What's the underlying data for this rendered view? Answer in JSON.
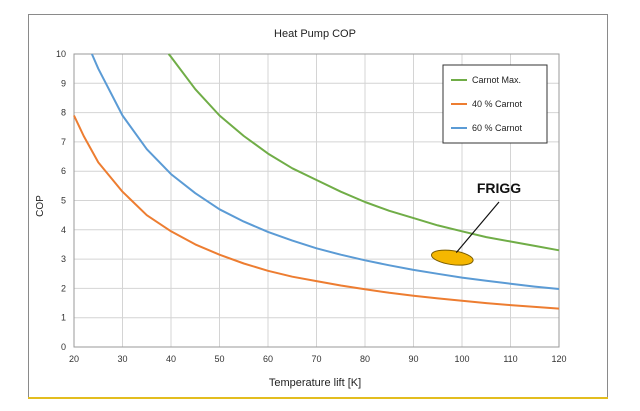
{
  "chart_data": {
    "type": "line",
    "title": "Heat Pump COP",
    "xlabel": "Temperature lift [K]",
    "ylabel": "COP",
    "xlim": [
      20,
      120
    ],
    "ylim": [
      0,
      10
    ],
    "xticks": [
      20,
      30,
      40,
      50,
      60,
      70,
      80,
      90,
      100,
      110,
      120
    ],
    "yticks": [
      0,
      1,
      2,
      3,
      4,
      5,
      6,
      7,
      8,
      9,
      10
    ],
    "grid": true,
    "legend_position": "top-right",
    "series": [
      {
        "name": "Carnot Max.",
        "color": "#70ad47",
        "x": [
          39.5,
          40,
          45,
          50,
          55,
          60,
          65,
          70,
          75,
          80,
          85,
          90,
          95,
          100,
          105,
          110,
          115,
          120
        ],
        "y": [
          10.0,
          9.9,
          8.8,
          7.9,
          7.2,
          6.6,
          6.1,
          5.7,
          5.3,
          4.95,
          4.65,
          4.4,
          4.15,
          3.95,
          3.75,
          3.6,
          3.45,
          3.3
        ]
      },
      {
        "name": "40 % Carnot",
        "color": "#ed7d31",
        "x": [
          20,
          22,
          25,
          30,
          35,
          40,
          45,
          50,
          55,
          60,
          65,
          70,
          75,
          80,
          85,
          90,
          95,
          100,
          105,
          110,
          115,
          120
        ],
        "y": [
          7.9,
          7.2,
          6.3,
          5.3,
          4.5,
          3.95,
          3.5,
          3.15,
          2.85,
          2.6,
          2.4,
          2.25,
          2.1,
          1.97,
          1.85,
          1.75,
          1.66,
          1.58,
          1.5,
          1.43,
          1.37,
          1.31
        ]
      },
      {
        "name": "60 % Carnot",
        "color": "#5b9bd5",
        "x": [
          23.7,
          25,
          30,
          35,
          40,
          45,
          50,
          55,
          60,
          65,
          70,
          75,
          80,
          85,
          90,
          95,
          100,
          105,
          110,
          115,
          120
        ],
        "y": [
          10.0,
          9.5,
          7.9,
          6.75,
          5.9,
          5.25,
          4.7,
          4.28,
          3.93,
          3.63,
          3.37,
          3.15,
          2.96,
          2.79,
          2.63,
          2.5,
          2.37,
          2.26,
          2.16,
          2.06,
          1.98
        ]
      }
    ],
    "annotations": [
      {
        "text": "FRIGG",
        "marker": "ellipse",
        "marker_center": [
          98,
          3.05
        ],
        "marker_color": "#f5b700",
        "arrow_tip": [
          99.5,
          3.95
        ]
      }
    ]
  }
}
